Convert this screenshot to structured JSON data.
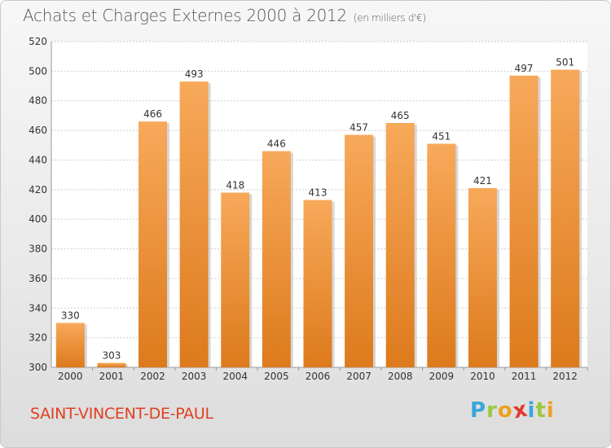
{
  "chart_data": {
    "type": "bar",
    "title": "Achats et Charges Externes 2000 à 2012",
    "subtitle": "(en milliers d'€)",
    "categories": [
      "2000",
      "2001",
      "2002",
      "2003",
      "2004",
      "2005",
      "2006",
      "2007",
      "2008",
      "2009",
      "2010",
      "2011",
      "2012"
    ],
    "values": [
      330,
      303,
      466,
      493,
      418,
      446,
      413,
      457,
      465,
      451,
      421,
      497,
      501
    ],
    "ylim": [
      300,
      520
    ],
    "yticks": [
      300,
      320,
      340,
      360,
      380,
      400,
      420,
      440,
      460,
      480,
      500,
      520
    ],
    "grid": true,
    "bar_color": "#f0953a"
  },
  "footer": {
    "commune": "SAINT-VINCENT-DE-PAUL",
    "logo_letters": [
      "P",
      "r",
      "o",
      "x",
      "i",
      "t",
      "i"
    ],
    "logo_colors": [
      "#3aa6dc",
      "#9bc83c",
      "#f0a020",
      "#e23a2a",
      "#3aa6dc",
      "#9bc83c",
      "#f0a020"
    ]
  }
}
